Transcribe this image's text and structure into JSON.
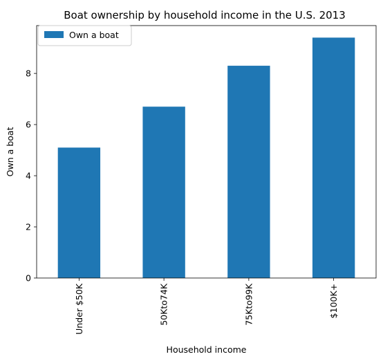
{
  "chart_data": {
    "type": "bar",
    "title": "Boat ownership by household income in the U.S. 2013",
    "xlabel": "Household income",
    "ylabel": "Own a boat",
    "categories": [
      "Under $50K",
      "50Kto74K",
      "75Kto99K",
      "$100K+"
    ],
    "series": [
      {
        "name": "Own a boat",
        "values": [
          5.1,
          6.7,
          8.3,
          9.4
        ]
      }
    ],
    "ylim": [
      0,
      9.87
    ],
    "yticks": [
      0,
      2,
      4,
      6,
      8
    ],
    "grid": false,
    "legend": "top-left",
    "bar_color": "#1f77b4"
  }
}
